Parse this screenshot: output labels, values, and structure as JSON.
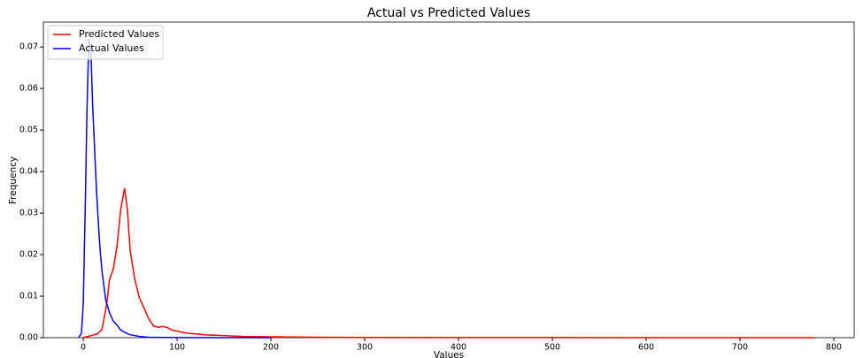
{
  "chart_data": {
    "type": "line",
    "title": "Actual vs Predicted Values",
    "x_label": "Values",
    "y_label": "Frequency",
    "xlim": [
      -42.5,
      821.7
    ],
    "ylim": [
      0,
      0.076
    ],
    "xticks": [
      0,
      100,
      200,
      300,
      400,
      500,
      600,
      700,
      800
    ],
    "yticks": [
      {
        "value": 0,
        "label": "0.00"
      },
      {
        "value": 0.01,
        "label": "0.01"
      },
      {
        "value": 0.02,
        "label": "0.02"
      },
      {
        "value": 0.03,
        "label": "0.03"
      },
      {
        "value": 0.04,
        "label": "0.04"
      },
      {
        "value": 0.05,
        "label": "0.05"
      },
      {
        "value": 0.06,
        "label": "0.06"
      },
      {
        "value": 0.07,
        "label": "0.07"
      }
    ],
    "legend": "upper left",
    "series": [
      {
        "name": "Predicted Values",
        "color": "#ff0000",
        "x": [
          0,
          5,
          10,
          15,
          20,
          25,
          28,
          32,
          36,
          40,
          44,
          47,
          50,
          55,
          60,
          65,
          70,
          75,
          80,
          85,
          90,
          95,
          100,
          110,
          120,
          130,
          150,
          170,
          200,
          250,
          300,
          400,
          500,
          600,
          700,
          780
        ],
        "values": [
          0,
          0.0003,
          0.0006,
          0.0009,
          0.002,
          0.008,
          0.014,
          0.0165,
          0.022,
          0.031,
          0.036,
          0.031,
          0.021,
          0.014,
          0.0095,
          0.007,
          0.0045,
          0.0028,
          0.0025,
          0.0027,
          0.0024,
          0.0018,
          0.0016,
          0.0011,
          0.0009,
          0.0007,
          0.0005,
          0.0003,
          0.0002,
          0.0001,
          5e-05,
          3e-05,
          2e-05,
          1e-05,
          1e-05,
          0
        ]
      },
      {
        "name": "Actual Values",
        "color": "#0000ff",
        "x": [
          -5,
          -2,
          0,
          2,
          4,
          6,
          8,
          10,
          12,
          14,
          16,
          18,
          20,
          24,
          28,
          32,
          36,
          40,
          45,
          50,
          60,
          70,
          100,
          150,
          200
        ],
        "values": [
          0,
          0.001,
          0.008,
          0.03,
          0.055,
          0.072,
          0.07,
          0.056,
          0.046,
          0.036,
          0.028,
          0.021,
          0.016,
          0.009,
          0.006,
          0.004,
          0.003,
          0.0018,
          0.0012,
          0.0007,
          0.0003,
          0.0001,
          3e-05,
          1e-05,
          0
        ]
      }
    ]
  }
}
